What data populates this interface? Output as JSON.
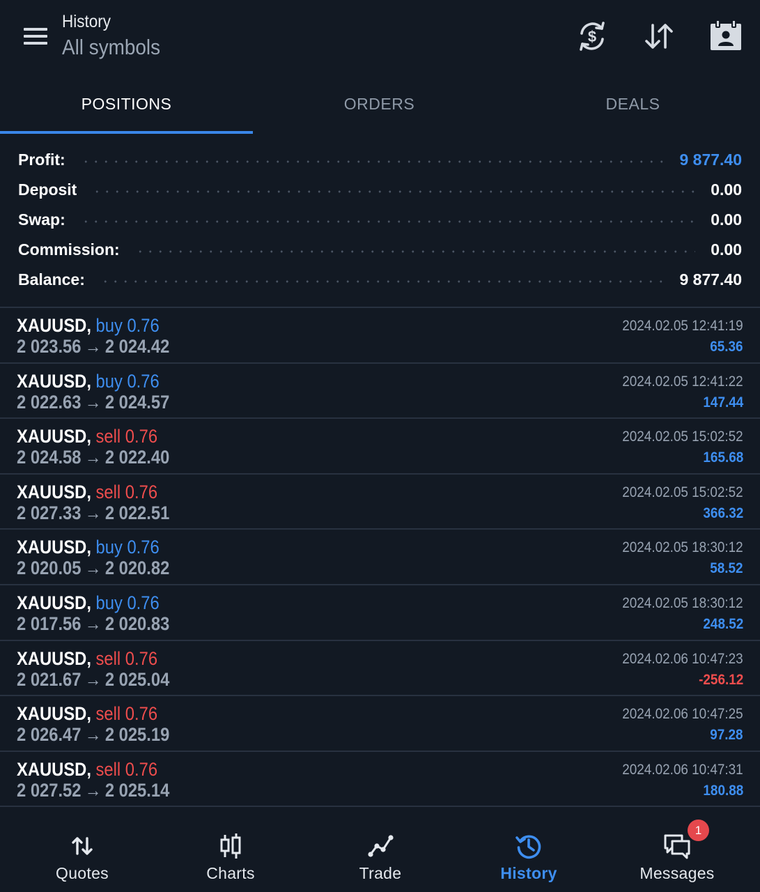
{
  "header": {
    "title": "History",
    "subtitle": "All symbols",
    "icons": [
      "menu-icon",
      "currency-exchange-icon",
      "sort-icon",
      "calendar-icon"
    ]
  },
  "tabs": [
    {
      "label": "POSITIONS",
      "active": true
    },
    {
      "label": "ORDERS",
      "active": false
    },
    {
      "label": "DEALS",
      "active": false
    }
  ],
  "summary": [
    {
      "label": "Profit:",
      "value": "9 877.40",
      "color": "#3e8ef0"
    },
    {
      "label": "Deposit",
      "value": "0.00",
      "color": "#ffffff"
    },
    {
      "label": "Swap:",
      "value": "0.00",
      "color": "#ffffff"
    },
    {
      "label": "Commission:",
      "value": "0.00",
      "color": "#ffffff"
    },
    {
      "label": "Balance:",
      "value": "9 877.40",
      "color": "#ffffff"
    }
  ],
  "positions": [
    {
      "symbol": "XAUUSD,",
      "direction": "buy 0.76",
      "side": "buy",
      "open": "2 023.56",
      "arrow": "→",
      "close": "2 024.42",
      "time": "2024.02.05 12:41:19",
      "profit": "65.36"
    },
    {
      "symbol": "XAUUSD,",
      "direction": "buy 0.76",
      "side": "buy",
      "open": "2 022.63",
      "arrow": "→",
      "close": "2 024.57",
      "time": "2024.02.05 12:41:22",
      "profit": "147.44"
    },
    {
      "symbol": "XAUUSD,",
      "direction": "sell 0.76",
      "side": "sell",
      "open": "2 024.58",
      "arrow": "→",
      "close": "2 022.40",
      "time": "2024.02.05 15:02:52",
      "profit": "165.68"
    },
    {
      "symbol": "XAUUSD,",
      "direction": "sell 0.76",
      "side": "sell",
      "open": "2 027.33",
      "arrow": "→",
      "close": "2 022.51",
      "time": "2024.02.05 15:02:52",
      "profit": "366.32"
    },
    {
      "symbol": "XAUUSD,",
      "direction": "buy 0.76",
      "side": "buy",
      "open": "2 020.05",
      "arrow": "→",
      "close": "2 020.82",
      "time": "2024.02.05 18:30:12",
      "profit": "58.52"
    },
    {
      "symbol": "XAUUSD,",
      "direction": "buy 0.76",
      "side": "buy",
      "open": "2 017.56",
      "arrow": "→",
      "close": "2 020.83",
      "time": "2024.02.05 18:30:12",
      "profit": "248.52"
    },
    {
      "symbol": "XAUUSD,",
      "direction": "sell 0.76",
      "side": "sell",
      "open": "2 021.67",
      "arrow": "→",
      "close": "2 025.04",
      "time": "2024.02.06 10:47:23",
      "profit": "-256.12"
    },
    {
      "symbol": "XAUUSD,",
      "direction": "sell 0.76",
      "side": "sell",
      "open": "2 026.47",
      "arrow": "→",
      "close": "2 025.19",
      "time": "2024.02.06 10:47:25",
      "profit": "97.28"
    },
    {
      "symbol": "XAUUSD,",
      "direction": "sell 0.76",
      "side": "sell",
      "open": "2 027.52",
      "arrow": "→",
      "close": "2 025.14",
      "time": "2024.02.06 10:47:31",
      "profit": "180.88"
    }
  ],
  "bottom_nav": [
    {
      "label": "Quotes",
      "icon": "quotes-arrows-icon",
      "active": false
    },
    {
      "label": "Charts",
      "icon": "candlestick-icon",
      "active": false
    },
    {
      "label": "Trade",
      "icon": "trend-line-icon",
      "active": false
    },
    {
      "label": "History",
      "icon": "history-clock-icon",
      "active": true
    },
    {
      "label": "Messages",
      "icon": "chat-bubbles-icon",
      "active": false,
      "badge": "1"
    }
  ],
  "colors": {
    "background": "#121923",
    "accent": "#3e8ef0",
    "sell": "#ee4d4d",
    "muted": "#98a3b2",
    "divider": "#283140"
  }
}
